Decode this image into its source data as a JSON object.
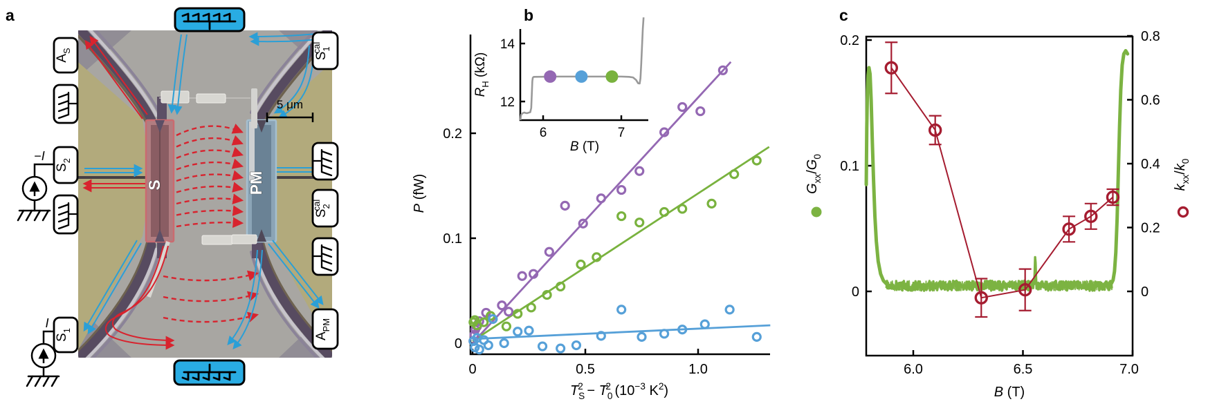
{
  "figure": {
    "panel_letters": [
      "a",
      "b",
      "c"
    ],
    "colors": {
      "purple": "#9468b3",
      "green": "#79b23e",
      "blue": "#56a0d8",
      "dark_red": "#a51c30",
      "inset_gray": "#999999",
      "c_green": "#7cb342",
      "arrow_red": "#d8232e",
      "arrow_blue": "#2b9fd6",
      "khaki": "#b2aa7c",
      "sem_gray": "#a8a6a2",
      "band_purple": "#574b60",
      "mesa_red": "#b17d81",
      "mesa_blue": "#8ba4b6",
      "reservoir_blue": "#29ace3"
    }
  },
  "panel_a": {
    "mesa_left_label": "S",
    "mesa_right_label": "PM",
    "scale_bar_label": "5 μm",
    "current_source_top_segments": [
      {
        "t": "−"
      },
      {
        "t": "I",
        "i": true
      }
    ],
    "current_source_bottom_segments": [
      {
        "t": "I",
        "i": true
      }
    ],
    "labels_left": [
      {
        "name": "A_S",
        "segments": [
          {
            "t": "A"
          },
          {
            "t": "S",
            "sub": true
          }
        ]
      },
      {
        "name": "heat-sink-symbol"
      },
      {
        "name": "S_2",
        "segments": [
          {
            "t": "S"
          },
          {
            "t": "2",
            "sub": true
          }
        ]
      },
      {
        "name": "heat-sink-symbol"
      },
      {
        "name": "S_1",
        "segments": [
          {
            "t": "S"
          },
          {
            "t": "1",
            "sub": true
          }
        ]
      }
    ],
    "labels_right": [
      {
        "name": "S_1_cal",
        "segments": [
          {
            "t": "S"
          },
          {
            "t": "1",
            "sub": true
          },
          {
            "t": "cal",
            "sup": true,
            "stack": true
          }
        ]
      },
      {
        "name": "heat-sink-symbol"
      },
      {
        "name": "S_2_cal",
        "segments": [
          {
            "t": "S"
          },
          {
            "t": "2",
            "sub": true
          },
          {
            "t": "cal",
            "sup": true,
            "stack": true
          }
        ]
      },
      {
        "name": "heat-sink-symbol"
      },
      {
        "name": "A_PM",
        "segments": [
          {
            "t": "A"
          },
          {
            "t": "PM",
            "sub": true
          }
        ]
      }
    ]
  },
  "chart_data": [
    {
      "id": "b_main",
      "type": "scatter",
      "panel": "b",
      "ylabel_segments": [
        {
          "t": "P",
          "i": true
        },
        {
          "t": " (fW)"
        }
      ],
      "xlabel_segments": [
        {
          "t": "T",
          "i": true
        },
        {
          "t": "S",
          "sub": true
        },
        {
          "t": "2",
          "sup": true,
          "stack": true
        },
        {
          "t": " − "
        },
        {
          "t": "T",
          "i": true
        },
        {
          "t": "0",
          "sub": true
        },
        {
          "t": "2",
          "sup": true,
          "stack": true
        },
        {
          "t": " (10"
        },
        {
          "t": "−3",
          "sup": true
        },
        {
          "t": " K"
        },
        {
          "t": "2",
          "sup": true
        },
        {
          "t": ")"
        }
      ],
      "xlim": [
        0,
        1.32
      ],
      "ylim": [
        0,
        0.305
      ],
      "x_ticks": [
        {
          "v": 0,
          "label": "0"
        },
        {
          "v": 0.5,
          "label": "0.5"
        },
        {
          "v": 1.0,
          "label": "1.0"
        }
      ],
      "y_ticks": [
        {
          "v": 0,
          "label": "0"
        },
        {
          "v": 0.1,
          "label": "0.1"
        },
        {
          "v": 0.2,
          "label": "0.2"
        }
      ],
      "series": [
        {
          "name": "purple-series",
          "color": "#9468b3",
          "points": [
            [
              0.004,
              0.002
            ],
            [
              0.008,
              0.008
            ],
            [
              0.012,
              0.013
            ],
            [
              0.02,
              0.016
            ],
            [
              0.03,
              0.021
            ],
            [
              0.06,
              0.029
            ],
            [
              0.13,
              0.036
            ],
            [
              0.16,
              0.03
            ],
            [
              0.22,
              0.064
            ],
            [
              0.27,
              0.066
            ],
            [
              0.34,
              0.087
            ],
            [
              0.41,
              0.131
            ],
            [
              0.49,
              0.114
            ],
            [
              0.57,
              0.138
            ],
            [
              0.66,
              0.146
            ],
            [
              0.74,
              0.164
            ],
            [
              0.85,
              0.201
            ],
            [
              0.93,
              0.225
            ],
            [
              1.01,
              0.221
            ],
            [
              1.11,
              0.26
            ]
          ],
          "fit": [
            [
              0,
              0
            ],
            [
              1.145,
              0.268
            ]
          ]
        },
        {
          "name": "green-series",
          "color": "#79b23e",
          "points": [
            [
              0.004,
              0.02
            ],
            [
              0.01,
              0.022
            ],
            [
              0.02,
              0.017
            ],
            [
              0.05,
              0.02
            ],
            [
              0.08,
              0.026
            ],
            [
              0.15,
              0.016
            ],
            [
              0.2,
              0.028
            ],
            [
              0.26,
              0.034
            ],
            [
              0.33,
              0.046
            ],
            [
              0.39,
              0.054
            ],
            [
              0.48,
              0.075
            ],
            [
              0.55,
              0.082
            ],
            [
              0.66,
              0.121
            ],
            [
              0.74,
              0.115
            ],
            [
              0.85,
              0.125
            ],
            [
              0.93,
              0.128
            ],
            [
              1.06,
              0.133
            ],
            [
              1.16,
              0.161
            ],
            [
              1.26,
              0.174
            ]
          ],
          "fit": [
            [
              0,
              0.002
            ],
            [
              1.315,
              0.187
            ]
          ]
        },
        {
          "name": "blue-series",
          "color": "#56a0d8",
          "points": [
            [
              0.004,
              0.002
            ],
            [
              0.01,
              -0.004
            ],
            [
              0.02,
              0.005
            ],
            [
              0.03,
              -0.006
            ],
            [
              0.05,
              0.003
            ],
            [
              0.07,
              -0.002
            ],
            [
              0.09,
              0.023
            ],
            [
              0.14,
              0.0
            ],
            [
              0.2,
              0.011
            ],
            [
              0.25,
              0.012
            ],
            [
              0.31,
              -0.003
            ],
            [
              0.39,
              -0.005
            ],
            [
              0.46,
              -0.002
            ],
            [
              0.57,
              0.007
            ],
            [
              0.66,
              0.032
            ],
            [
              0.75,
              0.006
            ],
            [
              0.85,
              0.009
            ],
            [
              0.93,
              0.013
            ],
            [
              1.03,
              0.018
            ],
            [
              1.14,
              0.032
            ],
            [
              1.26,
              0.006
            ]
          ],
          "fit": [
            [
              0,
              0.004
            ],
            [
              1.32,
              0.017
            ]
          ]
        }
      ]
    },
    {
      "id": "b_inset",
      "type": "line",
      "panel": "b-inset",
      "ylabel_segments": [
        {
          "t": "R",
          "i": true
        },
        {
          "t": "H",
          "sub": true
        },
        {
          "t": " (kΩ)"
        }
      ],
      "xlabel_segments": [
        {
          "t": "B",
          "i": true
        },
        {
          "t": " (T)"
        }
      ],
      "xlim": [
        5.71,
        7.35
      ],
      "ylim": [
        11.35,
        14.3
      ],
      "x_ticks": [
        {
          "v": 6,
          "label": "6"
        },
        {
          "v": 7,
          "label": "7"
        }
      ],
      "y_ticks": [
        {
          "v": 12,
          "label": "12"
        },
        {
          "v": 14,
          "label": "14"
        }
      ],
      "curve_color": "#999999",
      "curve": [
        [
          5.71,
          11.36
        ],
        [
          5.715,
          11.48
        ],
        [
          5.72,
          11.55
        ],
        [
          5.74,
          11.6
        ],
        [
          5.76,
          11.62
        ],
        [
          5.78,
          11.6
        ],
        [
          5.8,
          11.6
        ],
        [
          5.82,
          11.62
        ],
        [
          5.835,
          11.63
        ],
        [
          5.848,
          11.78
        ],
        [
          5.856,
          12.3
        ],
        [
          5.862,
          12.7
        ],
        [
          5.868,
          12.82
        ],
        [
          5.88,
          12.85
        ],
        [
          6.2,
          12.86
        ],
        [
          6.6,
          12.86
        ],
        [
          7.0,
          12.86
        ],
        [
          7.1,
          12.85
        ],
        [
          7.15,
          12.83
        ],
        [
          7.19,
          12.74
        ],
        [
          7.215,
          12.63
        ],
        [
          7.235,
          12.62
        ],
        [
          7.245,
          12.8
        ],
        [
          7.255,
          13.3
        ],
        [
          7.265,
          13.9
        ],
        [
          7.275,
          14.5
        ],
        [
          7.285,
          14.9
        ]
      ],
      "markers": [
        {
          "B": 6.09,
          "R": 12.86,
          "color": "#9468b3",
          "name": "purple-field-dot"
        },
        {
          "B": 6.49,
          "R": 12.86,
          "color": "#56a0d8",
          "name": "blue-field-dot"
        },
        {
          "B": 6.88,
          "R": 12.86,
          "color": "#79b23e",
          "name": "green-field-dot"
        }
      ]
    },
    {
      "id": "c",
      "type": "line-scatter-dual-axis",
      "panel": "c",
      "xlabel_segments": [
        {
          "t": "B",
          "i": true
        },
        {
          "t": " (T)"
        }
      ],
      "left_ylabel_segments": [
        {
          "t": "G",
          "i": true
        },
        {
          "t": "xx",
          "sub": true
        },
        {
          "t": "/"
        },
        {
          "t": "G",
          "i": true
        },
        {
          "t": "0",
          "sub": true
        }
      ],
      "right_ylabel_segments": [
        {
          "t": "k",
          "i": true
        },
        {
          "t": "xx",
          "sub": true
        },
        {
          "t": "/"
        },
        {
          "t": "k",
          "i": true
        },
        {
          "t": "0",
          "sub": true
        }
      ],
      "xlim": [
        5.786,
        7.0
      ],
      "left_ylim": [
        -0.051,
        0.203
      ],
      "right_ylim": [
        -0.204,
        0.8
      ],
      "x_ticks": [
        {
          "v": 6.0,
          "label": "6.0"
        },
        {
          "v": 6.5,
          "label": "6.5"
        },
        {
          "v": 7.0,
          "label": "7.0"
        }
      ],
      "left_y_ticks": [
        {
          "v": 0,
          "label": "0"
        },
        {
          "v": 0.1,
          "label": "0.1"
        },
        {
          "v": 0.2,
          "label": "0.2"
        }
      ],
      "right_y_ticks": [
        {
          "v": 0,
          "label": "0"
        },
        {
          "v": 0.2,
          "label": "0.2"
        },
        {
          "v": 0.4,
          "label": "0.4"
        },
        {
          "v": 0.6,
          "label": "0.6"
        },
        {
          "v": 0.8,
          "label": "0.8"
        }
      ],
      "green_series": {
        "name": "Gxx/G0",
        "color": "#7cb342",
        "left_spike": [
          [
            5.7856,
            0.085
          ],
          [
            5.788,
            0.13
          ],
          [
            5.791,
            0.16
          ],
          [
            5.794,
            0.172
          ],
          [
            5.798,
            0.178
          ],
          [
            5.803,
            0.173
          ],
          [
            5.808,
            0.152
          ],
          [
            5.8135,
            0.118
          ],
          [
            5.819,
            0.088
          ],
          [
            5.825,
            0.06
          ],
          [
            5.8315,
            0.04
          ],
          [
            5.84,
            0.024
          ],
          [
            5.851,
            0.014
          ],
          [
            5.864,
            0.0085
          ],
          [
            5.878,
            0.006
          ]
        ],
        "right_spike": [
          [
            6.904,
            0.0065
          ],
          [
            6.911,
            0.009
          ],
          [
            6.9175,
            0.016
          ],
          [
            6.9235,
            0.031
          ],
          [
            6.9295,
            0.058
          ],
          [
            6.935,
            0.095
          ],
          [
            6.9405,
            0.131
          ],
          [
            6.946,
            0.16
          ],
          [
            6.9525,
            0.18
          ],
          [
            6.96,
            0.189
          ],
          [
            6.9685,
            0.1915
          ],
          [
            6.977,
            0.189
          ]
        ],
        "plateau": {
          "from": 5.878,
          "to": 6.906,
          "base": 0.0045,
          "noise": 0.004,
          "spike_B": 6.556,
          "spike_h": 0.024,
          "spike_w": 0.005
        }
      },
      "red_series": {
        "name": "kxx/k0",
        "color": "#a51c30",
        "B": [
          5.9,
          6.1,
          6.31,
          6.51,
          6.71,
          6.81,
          6.91
        ],
        "k": [
          0.7,
          0.505,
          -0.02,
          0.005,
          0.195,
          0.235,
          0.295
        ],
        "err": [
          0.08,
          0.045,
          0.06,
          0.065,
          0.04,
          0.04,
          0.025
        ]
      }
    }
  ]
}
